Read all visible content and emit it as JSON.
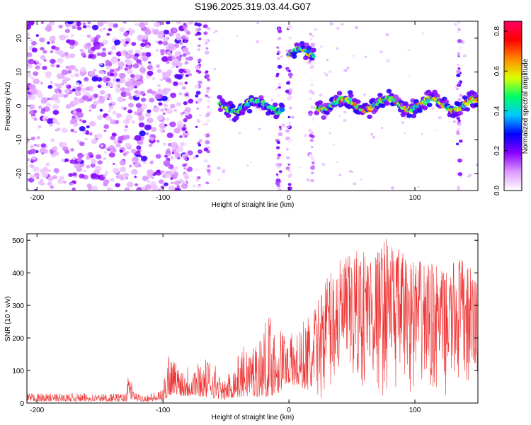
{
  "chart_data": [
    {
      "type": "heatmap",
      "title": "S196.2025.319.03.44.G07",
      "xlabel": "Height of straight line (km)",
      "ylabel": "Frequency (Hz)",
      "xlim": [
        -208,
        150
      ],
      "ylim": [
        -25,
        25
      ],
      "xticks": [
        -200,
        -100,
        0,
        100
      ],
      "yticks": [
        -20,
        -10,
        0,
        10,
        20
      ],
      "colorbar": {
        "label": "Normalized spectral amplitude",
        "range": [
          0,
          0.85
        ],
        "ticks": [
          0.0,
          0.2,
          0.4,
          0.6,
          0.8
        ],
        "colors": [
          "#ffffff",
          "#dd99ff",
          "#8800ff",
          "#0000ff",
          "#00c8ff",
          "#00ff66",
          "#e0ff00",
          "#ff8800",
          "#ff0000",
          "#ff0066"
        ]
      },
      "features": [
        {
          "name": "noise region",
          "x_range": [
            -208,
            -78
          ],
          "freq_range": [
            -25,
            25
          ],
          "amplitude": 0.1
        },
        {
          "name": "signal band",
          "x_range": [
            -55,
            -5
          ],
          "freq_center": 0,
          "amplitude": 0.6
        },
        {
          "name": "signal band",
          "x_range": [
            0,
            20
          ],
          "freq_center": 15,
          "amplitude": 0.7
        },
        {
          "name": "signal band",
          "x_range": [
            22,
            150
          ],
          "freq_center": 0.5,
          "amplitude": 0.75
        }
      ]
    },
    {
      "type": "line",
      "title": "",
      "xlabel": "Height of straight line (km)",
      "ylabel": "SNR (10 * v/v)",
      "xlim": [
        -208,
        150
      ],
      "ylim": [
        0,
        520
      ],
      "xticks": [
        -200,
        -100,
        0,
        100
      ],
      "yticks": [
        0,
        100,
        200,
        300,
        400,
        500
      ],
      "series": [
        {
          "name": "SNR",
          "color": "#ee3333",
          "envelope": {
            "x": [
              -208,
              -130,
              -126,
              -124,
              -118,
              -100,
              -96,
              -92,
              -85,
              -75,
              -60,
              -52,
              -45,
              -35,
              -25,
              -15,
              -8,
              -2,
              5,
              15,
              22,
              30,
              40,
              50,
              60,
              70,
              78,
              85,
              100,
              115,
              125,
              135,
              140,
              150
            ],
            "min": [
              5,
              5,
              10,
              10,
              5,
              5,
              15,
              30,
              20,
              20,
              15,
              10,
              15,
              20,
              20,
              20,
              30,
              60,
              50,
              40,
              10,
              20,
              15,
              20,
              20,
              15,
              20,
              20,
              20,
              15,
              20,
              20,
              10,
              10
            ],
            "max": [
              30,
              30,
              115,
              40,
              25,
              40,
              180,
              140,
              120,
              130,
              140,
              60,
              120,
              180,
              200,
              280,
              250,
              230,
              210,
              280,
              300,
              400,
              440,
              460,
              480,
              470,
              520,
              480,
              440,
              430,
              400,
              460,
              430,
              400
            ]
          }
        }
      ]
    }
  ]
}
